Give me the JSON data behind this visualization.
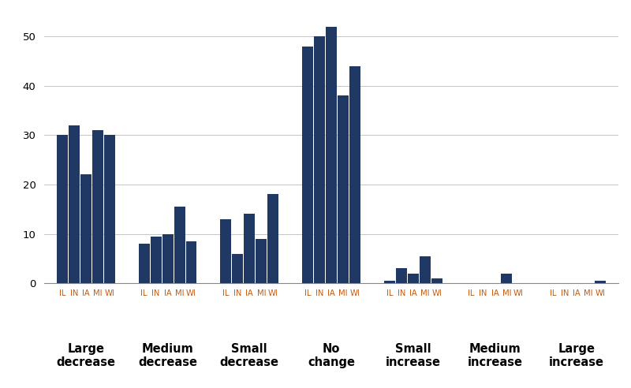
{
  "categories": [
    "Large\ndecrease",
    "Medium\ndecrease",
    "Small\ndecrease",
    "No\nchange",
    "Small\nincrease",
    "Medium\nincrease",
    "Large\nincrease"
  ],
  "cat_labels": [
    "Large\ndecrease",
    "Medium\ndecrease",
    "Small\ndecrease",
    "No\nchange",
    "Small\nincrease",
    "Medium\nincrease",
    "Large\nincrease"
  ],
  "states": [
    "IL",
    "IN",
    "IA",
    "MI",
    "WI"
  ],
  "values": [
    [
      30,
      32,
      22,
      31,
      30
    ],
    [
      8,
      9.5,
      10,
      15.5,
      8.5
    ],
    [
      13,
      6,
      14,
      9,
      18
    ],
    [
      48,
      50,
      52,
      38,
      44
    ],
    [
      0.5,
      3,
      2,
      5.5,
      1
    ],
    [
      0,
      0,
      0,
      2,
      0
    ],
    [
      0,
      0,
      0,
      0,
      0.5
    ]
  ],
  "bar_color": "#1F3864",
  "tick_label_color": "#C55A11",
  "category_label_color": "#000000",
  "background_color": "#FFFFFF",
  "ylim": [
    0,
    55
  ],
  "yticks": [
    0,
    10,
    20,
    30,
    40,
    50
  ],
  "grid_color": "#BBBBBB",
  "figsize": [
    8.0,
    4.92
  ],
  "dpi": 100
}
